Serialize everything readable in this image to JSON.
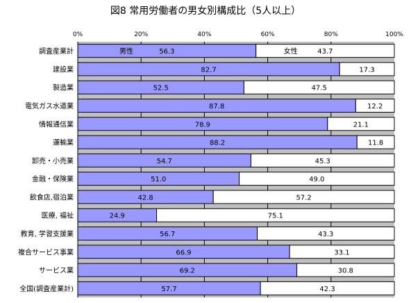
{
  "title": "図8  常用労働者の男女別構成比（5人以上）",
  "colors": {
    "male": "#9999ff",
    "female": "#ffffff",
    "plot_bg": "#c0c0c0",
    "grid": "#000000"
  },
  "chart_data": {
    "type": "bar",
    "orientation": "horizontal",
    "stacked": "percent",
    "title": "図8  常用労働者の男女別構成比（5人以上）",
    "xlim": [
      0,
      100
    ],
    "x_ticks": [
      "0%",
      "20%",
      "40%",
      "60%",
      "80%",
      "100%"
    ],
    "legend_labels": {
      "male": "男性",
      "female": "女性"
    },
    "categories": [
      "調査産業計",
      "建設業",
      "製造業",
      "電気ガス水道業",
      "情報通信業",
      "運輸業",
      "卸売・小売業",
      "金融・保険業",
      "飲食店,宿泊業",
      "医療, 福祉",
      "教育, 学習支援業",
      "複合サービス事業",
      "サービス業",
      "全国(調査産業計)"
    ],
    "series": [
      {
        "name": "男性",
        "values": [
          56.3,
          82.7,
          52.5,
          87.8,
          78.9,
          88.2,
          54.7,
          51.0,
          42.8,
          24.9,
          56.7,
          66.9,
          69.2,
          57.7
        ]
      },
      {
        "name": "女性",
        "values": [
          43.7,
          17.3,
          47.5,
          12.2,
          21.1,
          11.8,
          45.3,
          49.0,
          57.2,
          75.1,
          43.3,
          33.1,
          30.8,
          42.3
        ]
      }
    ]
  }
}
